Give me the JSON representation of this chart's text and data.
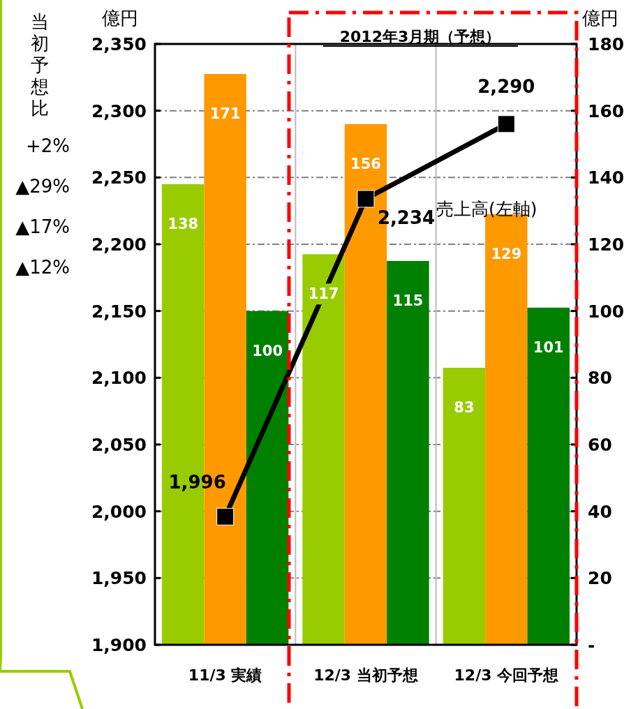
{
  "chart_data": {
    "type": "bar",
    "title": "2012年3月期（予想）",
    "ylabel": "億円",
    "y2label": "億円",
    "categories": [
      "11/3 実績",
      "12/3 当初予想",
      "12/3 今回予想"
    ],
    "series": [
      {
        "color": "#99cc00",
        "axis": "y2",
        "values": [
          138,
          117,
          83
        ],
        "value_labels": [
          "138",
          "117",
          "83"
        ]
      },
      {
        "color": "#ff9900",
        "axis": "y2",
        "values": [
          171,
          156,
          129
        ],
        "value_labels": [
          "171",
          "156",
          "129"
        ]
      },
      {
        "color": "#008000",
        "axis": "y2",
        "values": [
          100,
          115,
          101
        ],
        "value_labels": [
          "100",
          "115",
          "101"
        ]
      },
      {
        "type": "line",
        "name": "売上高(左軸)",
        "color": "#000000",
        "marker": "square",
        "values": [
          1996,
          2234,
          2290
        ],
        "value_labels": [
          "1,996",
          "2,234",
          "2,290"
        ]
      }
    ],
    "ylim": [
      1900,
      2350
    ],
    "yticks": [
      {
        "value": 1900,
        "label": "1,900"
      },
      {
        "value": 1950,
        "label": "1,950"
      },
      {
        "value": 2000,
        "label": "2,000"
      },
      {
        "value": 2050,
        "label": "2,050"
      },
      {
        "value": 2100,
        "label": "2,100"
      },
      {
        "value": 2150,
        "label": "2,150"
      },
      {
        "value": 2200,
        "label": "2,200"
      },
      {
        "value": 2250,
        "label": "2,250"
      },
      {
        "value": 2300,
        "label": "2,300"
      },
      {
        "value": 2350,
        "label": "2,350"
      }
    ],
    "y2lim": [
      0,
      180
    ],
    "y2ticks": [
      {
        "value": 0,
        "label": "-"
      },
      20,
      40,
      60,
      80,
      100,
      120,
      140,
      160,
      180
    ],
    "grid": "y",
    "annotations": [
      "当初予想比",
      "+2%",
      "▲29%",
      "▲17%",
      "▲12%"
    ]
  }
}
